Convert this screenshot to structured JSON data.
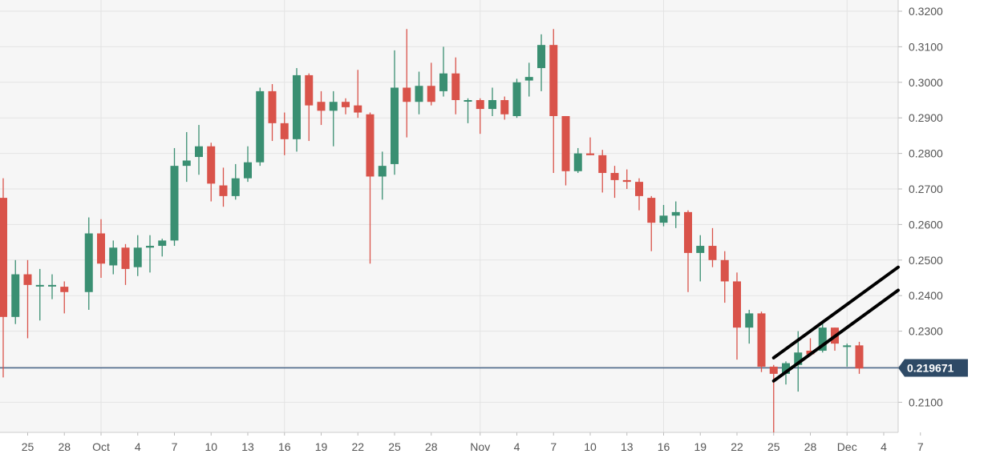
{
  "chart_data": {
    "type": "candlestick",
    "title": "",
    "xlabel": "",
    "ylabel": "",
    "ylim": [
      0.2015,
      0.3225
    ],
    "y_ticks": [
      "0.2100",
      "0.2200",
      "0.2300",
      "0.2400",
      "0.2500",
      "0.2600",
      "0.2700",
      "0.2800",
      "0.2900",
      "0.3000",
      "0.3100",
      "0.3200"
    ],
    "x_ticks": [
      "25",
      "28",
      "Oct",
      "4",
      "7",
      "10",
      "13",
      "16",
      "19",
      "22",
      "25",
      "28",
      "Nov",
      "4",
      "7",
      "10",
      "13",
      "16",
      "19",
      "22",
      "25",
      "28",
      "Dec",
      "4",
      "7"
    ],
    "grid": true,
    "current_price": 0.219671,
    "current_price_label": "0.219671",
    "colors": {
      "up": "#3a8f72",
      "down": "#d9534a",
      "price_line": "#3c5a80",
      "trend": "#000000",
      "grid": "#e3e3e3",
      "background": "#f6f6f6"
    },
    "candles": [
      {
        "date": "Sep 23",
        "o": 0.2675,
        "h": 0.273,
        "l": 0.217,
        "c": 0.234
      },
      {
        "date": "Sep 24",
        "o": 0.234,
        "h": 0.25,
        "l": 0.232,
        "c": 0.246
      },
      {
        "date": "Sep 25",
        "o": 0.246,
        "h": 0.25,
        "l": 0.228,
        "c": 0.243
      },
      {
        "date": "Sep 26",
        "o": 0.243,
        "h": 0.2475,
        "l": 0.233,
        "c": 0.243
      },
      {
        "date": "Sep 27",
        "o": 0.243,
        "h": 0.246,
        "l": 0.239,
        "c": 0.243
      },
      {
        "date": "Sep 28",
        "o": 0.2425,
        "h": 0.244,
        "l": 0.235,
        "c": 0.241
      },
      {
        "date": "Sep 30",
        "o": 0.241,
        "h": 0.262,
        "l": 0.236,
        "c": 0.2575
      },
      {
        "date": "Oct 1",
        "o": 0.2575,
        "h": 0.2615,
        "l": 0.245,
        "c": 0.249
      },
      {
        "date": "Oct 2",
        "o": 0.2485,
        "h": 0.2555,
        "l": 0.246,
        "c": 0.2535
      },
      {
        "date": "Oct 3",
        "o": 0.2535,
        "h": 0.2545,
        "l": 0.243,
        "c": 0.2475
      },
      {
        "date": "Oct 4",
        "o": 0.248,
        "h": 0.257,
        "l": 0.2455,
        "c": 0.2535
      },
      {
        "date": "Oct 5",
        "o": 0.2535,
        "h": 0.257,
        "l": 0.2465,
        "c": 0.254
      },
      {
        "date": "Oct 6",
        "o": 0.254,
        "h": 0.256,
        "l": 0.251,
        "c": 0.2555
      },
      {
        "date": "Oct 7",
        "o": 0.2555,
        "h": 0.2815,
        "l": 0.254,
        "c": 0.2765
      },
      {
        "date": "Oct 8",
        "o": 0.2765,
        "h": 0.286,
        "l": 0.272,
        "c": 0.278
      },
      {
        "date": "Oct 9",
        "o": 0.279,
        "h": 0.288,
        "l": 0.274,
        "c": 0.282
      },
      {
        "date": "Oct 10",
        "o": 0.282,
        "h": 0.283,
        "l": 0.2665,
        "c": 0.2715
      },
      {
        "date": "Oct 11",
        "o": 0.271,
        "h": 0.276,
        "l": 0.265,
        "c": 0.268
      },
      {
        "date": "Oct 12",
        "o": 0.268,
        "h": 0.277,
        "l": 0.267,
        "c": 0.273
      },
      {
        "date": "Oct 13",
        "o": 0.273,
        "h": 0.282,
        "l": 0.272,
        "c": 0.2775
      },
      {
        "date": "Oct 14",
        "o": 0.2775,
        "h": 0.2985,
        "l": 0.2765,
        "c": 0.2975
      },
      {
        "date": "Oct 15",
        "o": 0.2975,
        "h": 0.2995,
        "l": 0.2835,
        "c": 0.2885
      },
      {
        "date": "Oct 16",
        "o": 0.2885,
        "h": 0.2915,
        "l": 0.2795,
        "c": 0.284
      },
      {
        "date": "Oct 17",
        "o": 0.284,
        "h": 0.304,
        "l": 0.2805,
        "c": 0.302
      },
      {
        "date": "Oct 18",
        "o": 0.302,
        "h": 0.3025,
        "l": 0.2835,
        "c": 0.2935
      },
      {
        "date": "Oct 19",
        "o": 0.2945,
        "h": 0.2975,
        "l": 0.288,
        "c": 0.292
      },
      {
        "date": "Oct 20",
        "o": 0.292,
        "h": 0.2975,
        "l": 0.282,
        "c": 0.2945
      },
      {
        "date": "Oct 21",
        "o": 0.2945,
        "h": 0.2955,
        "l": 0.291,
        "c": 0.293
      },
      {
        "date": "Oct 22",
        "o": 0.2935,
        "h": 0.3035,
        "l": 0.29,
        "c": 0.2915
      },
      {
        "date": "Oct 23",
        "o": 0.291,
        "h": 0.2915,
        "l": 0.249,
        "c": 0.2735
      },
      {
        "date": "Oct 24",
        "o": 0.2735,
        "h": 0.2805,
        "l": 0.267,
        "c": 0.2765
      },
      {
        "date": "Oct 25",
        "o": 0.277,
        "h": 0.309,
        "l": 0.274,
        "c": 0.2985
      },
      {
        "date": "Oct 26",
        "o": 0.2985,
        "h": 0.315,
        "l": 0.2845,
        "c": 0.2945
      },
      {
        "date": "Oct 27",
        "o": 0.2945,
        "h": 0.303,
        "l": 0.291,
        "c": 0.299
      },
      {
        "date": "Oct 28",
        "o": 0.299,
        "h": 0.3055,
        "l": 0.2935,
        "c": 0.2945
      },
      {
        "date": "Oct 29",
        "o": 0.2975,
        "h": 0.31,
        "l": 0.296,
        "c": 0.3025
      },
      {
        "date": "Oct 30",
        "o": 0.3025,
        "h": 0.307,
        "l": 0.291,
        "c": 0.295
      },
      {
        "date": "Oct 31",
        "o": 0.295,
        "h": 0.2955,
        "l": 0.2885,
        "c": 0.295
      },
      {
        "date": "Nov 1",
        "o": 0.295,
        "h": 0.2955,
        "l": 0.2855,
        "c": 0.2925
      },
      {
        "date": "Nov 2",
        "o": 0.2925,
        "h": 0.2985,
        "l": 0.2905,
        "c": 0.295
      },
      {
        "date": "Nov 3",
        "o": 0.295,
        "h": 0.296,
        "l": 0.2895,
        "c": 0.291
      },
      {
        "date": "Nov 4",
        "o": 0.2905,
        "h": 0.301,
        "l": 0.29,
        "c": 0.3
      },
      {
        "date": "Nov 5",
        "o": 0.3005,
        "h": 0.3055,
        "l": 0.296,
        "c": 0.3015
      },
      {
        "date": "Nov 6",
        "o": 0.304,
        "h": 0.3135,
        "l": 0.2975,
        "c": 0.3105
      },
      {
        "date": "Nov 7",
        "o": 0.3105,
        "h": 0.315,
        "l": 0.2745,
        "c": 0.2905
      },
      {
        "date": "Nov 8",
        "o": 0.2905,
        "h": 0.2905,
        "l": 0.271,
        "c": 0.275
      },
      {
        "date": "Nov 9",
        "o": 0.275,
        "h": 0.2815,
        "l": 0.2745,
        "c": 0.28
      },
      {
        "date": "Nov 10",
        "o": 0.28,
        "h": 0.2845,
        "l": 0.2795,
        "c": 0.2795
      },
      {
        "date": "Nov 11",
        "o": 0.2795,
        "h": 0.281,
        "l": 0.269,
        "c": 0.2745
      },
      {
        "date": "Nov 12",
        "o": 0.2745,
        "h": 0.2765,
        "l": 0.2675,
        "c": 0.2725
      },
      {
        "date": "Nov 13",
        "o": 0.2725,
        "h": 0.2755,
        "l": 0.27,
        "c": 0.272
      },
      {
        "date": "Nov 14",
        "o": 0.272,
        "h": 0.273,
        "l": 0.264,
        "c": 0.268
      },
      {
        "date": "Nov 15",
        "o": 0.2675,
        "h": 0.268,
        "l": 0.2525,
        "c": 0.2605
      },
      {
        "date": "Nov 16",
        "o": 0.2605,
        "h": 0.2655,
        "l": 0.2595,
        "c": 0.2625
      },
      {
        "date": "Nov 17",
        "o": 0.2625,
        "h": 0.2665,
        "l": 0.259,
        "c": 0.2635
      },
      {
        "date": "Nov 18",
        "o": 0.2635,
        "h": 0.264,
        "l": 0.241,
        "c": 0.252
      },
      {
        "date": "Nov 19",
        "o": 0.252,
        "h": 0.257,
        "l": 0.244,
        "c": 0.254
      },
      {
        "date": "Nov 20",
        "o": 0.254,
        "h": 0.259,
        "l": 0.248,
        "c": 0.25
      },
      {
        "date": "Nov 21",
        "o": 0.25,
        "h": 0.2525,
        "l": 0.238,
        "c": 0.244
      },
      {
        "date": "Nov 22",
        "o": 0.244,
        "h": 0.2465,
        "l": 0.222,
        "c": 0.231
      },
      {
        "date": "Nov 23",
        "o": 0.231,
        "h": 0.236,
        "l": 0.2265,
        "c": 0.235
      },
      {
        "date": "Nov 24",
        "o": 0.235,
        "h": 0.2355,
        "l": 0.2185,
        "c": 0.22
      },
      {
        "date": "Nov 25",
        "o": 0.22,
        "h": 0.2205,
        "l": 0.2015,
        "c": 0.218
      },
      {
        "date": "Nov 26",
        "o": 0.218,
        "h": 0.2215,
        "l": 0.215,
        "c": 0.221
      },
      {
        "date": "Nov 27",
        "o": 0.2205,
        "h": 0.23,
        "l": 0.213,
        "c": 0.224
      },
      {
        "date": "Nov 28",
        "o": 0.2245,
        "h": 0.228,
        "l": 0.223,
        "c": 0.2235
      },
      {
        "date": "Nov 29",
        "o": 0.2245,
        "h": 0.233,
        "l": 0.224,
        "c": 0.231
      },
      {
        "date": "Nov 30",
        "o": 0.231,
        "h": 0.231,
        "l": 0.2245,
        "c": 0.2265
      },
      {
        "date": "Dec 1",
        "o": 0.226,
        "h": 0.2265,
        "l": 0.22,
        "c": 0.226
      },
      {
        "date": "Dec 2",
        "o": 0.226,
        "h": 0.227,
        "l": 0.218,
        "c": 0.2195
      }
    ],
    "trend_lines": [
      {
        "x1": "Nov 25",
        "y1": 0.2225,
        "x2": "Dec 7",
        "y2": 0.248
      },
      {
        "x1": "Nov 25",
        "y1": 0.216,
        "x2": "Dec 7",
        "y2": 0.2415
      }
    ]
  }
}
